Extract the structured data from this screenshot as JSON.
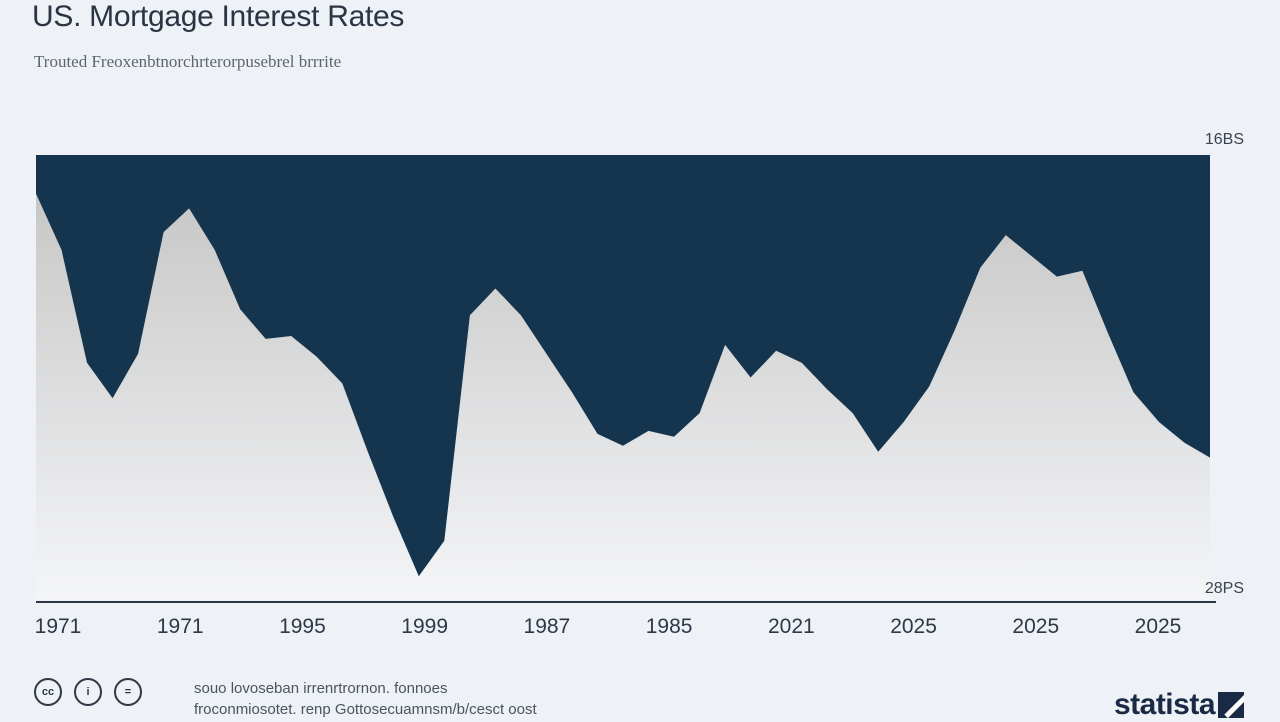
{
  "title": "US. Mortgage Interest Rates",
  "subtitle": "Trouted Freoxenbtnorchrterorpusebrel brrrite",
  "y_top_label": "16BS",
  "y_bottom_label": "28PS",
  "x_tick_labels": [
    "1971",
    "1971",
    "1995",
    "1999",
    "1987",
    "1985",
    "2021",
    "2025",
    "2025",
    "2025"
  ],
  "source_line1": "souo lovoseban irrenrtrornon. fonnoes",
  "source_line2": "froconmiosotet. renp Gottosecuamnsm/b/cesct oost",
  "license_icons": [
    {
      "name": "creative-commons-icon",
      "glyph": "cc"
    },
    {
      "name": "info-icon",
      "glyph": "i"
    },
    {
      "name": "equals-icon",
      "glyph": "="
    }
  ],
  "brand": "statista",
  "colors": {
    "background": "#eef1f5",
    "band": "#15354f",
    "area_top": "#c9c9c9",
    "area_bottom": "#f4f5f7",
    "axis": "#2e3846"
  },
  "chart_data": {
    "type": "area",
    "series": [
      {
        "values": [
          13.7,
          11.8,
          8.0,
          6.8,
          8.3,
          12.4,
          13.2,
          11.8,
          9.8,
          8.8,
          8.9,
          8.2,
          7.3,
          5.0,
          2.8,
          0.8,
          2.0,
          9.6,
          10.5,
          9.6,
          8.3,
          7.0,
          5.6,
          5.2,
          5.7,
          5.5,
          6.3,
          8.6,
          7.5,
          8.4,
          8.0,
          7.1,
          6.3,
          5.0,
          6.0,
          7.2,
          9.1,
          11.2,
          12.3,
          11.6,
          10.9,
          11.1,
          9.0,
          7.0,
          6.0,
          5.3,
          4.8
        ],
        "color": "#cbcbcb"
      }
    ],
    "ylim": [
      0,
      15
    ],
    "band_color": "#15354f",
    "grid": false,
    "legend": "none"
  }
}
